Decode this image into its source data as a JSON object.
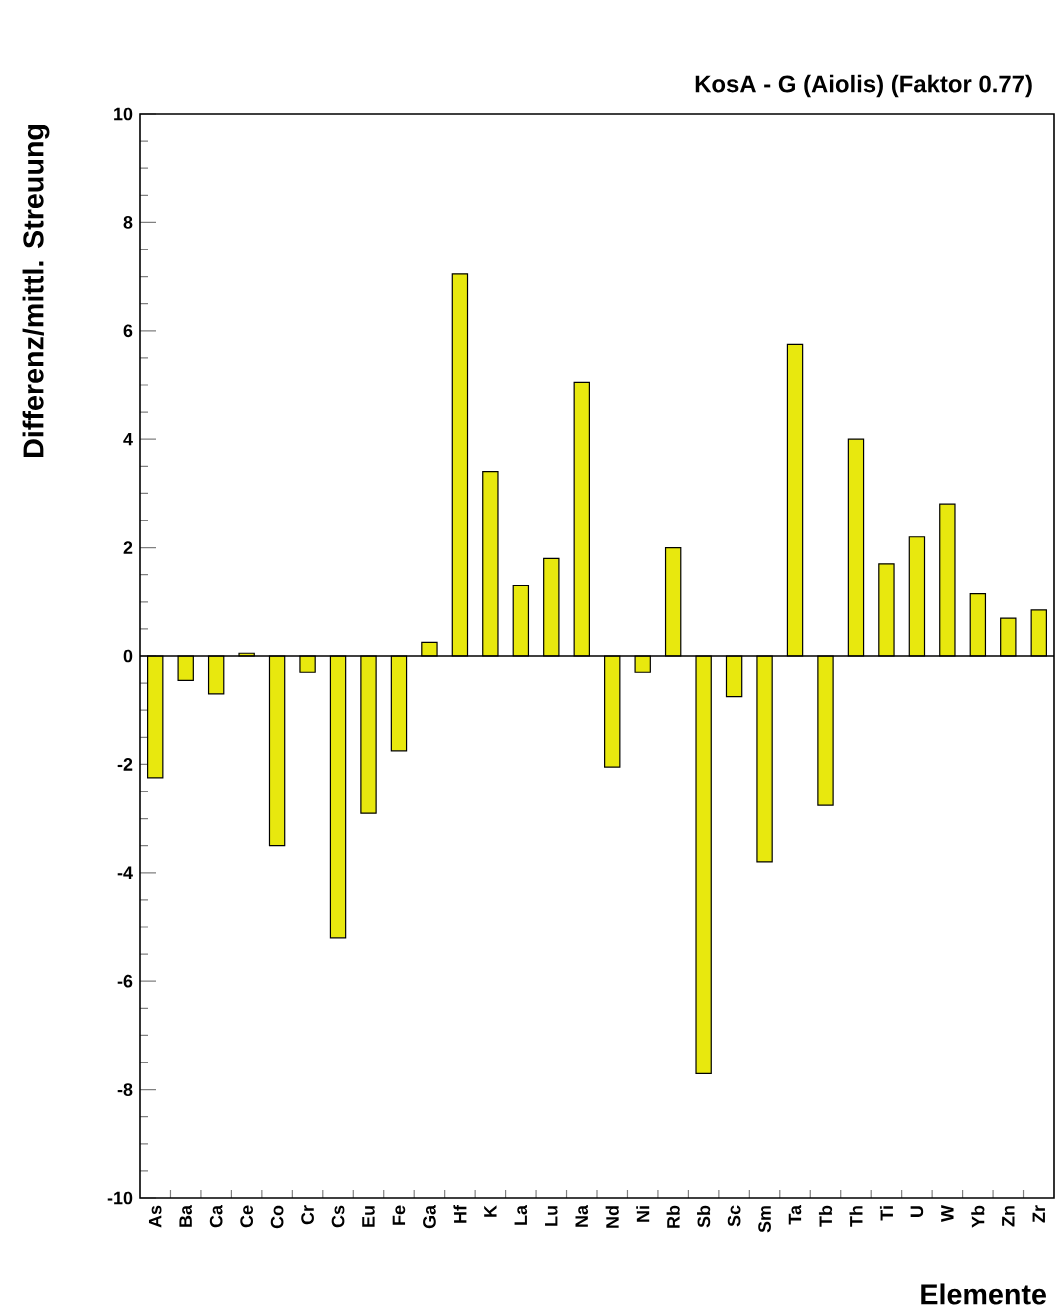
{
  "chart_data": {
    "type": "bar",
    "title": "KosA  - G (Aiolis) (Faktor 0.77)",
    "xlabel": "Elemente",
    "ylabel": "Differenz/mittl. Streuung",
    "categories": [
      "As",
      "Ba",
      "Ca",
      "Ce",
      "Co",
      "Cr",
      "Cs",
      "Eu",
      "Fe",
      "Ga",
      "Hf",
      "K",
      "La",
      "Lu",
      "Na",
      "Nd",
      "Ni",
      "Rb",
      "Sb",
      "Sc",
      "Sm",
      "Ta",
      "Tb",
      "Th",
      "Ti",
      "U",
      "W",
      "Yb",
      "Zn",
      "Zr"
    ],
    "values": [
      -2.25,
      -0.45,
      -0.7,
      0.05,
      -3.5,
      -0.3,
      -5.2,
      -2.9,
      -1.75,
      0.25,
      7.05,
      3.4,
      1.3,
      1.8,
      5.05,
      -2.05,
      -0.3,
      2.0,
      -7.7,
      -0.75,
      -3.8,
      5.75,
      -2.75,
      4.0,
      1.7,
      2.2,
      2.8,
      1.15,
      0.7,
      0.85
    ],
    "color": "#e8e80e",
    "ylim": [
      -10,
      10
    ],
    "yticks": [
      -10,
      -8,
      -6,
      -4,
      -2,
      0,
      2,
      4,
      6,
      8,
      10
    ],
    "ref_lines": [
      {
        "axis": "y",
        "value": 0
      }
    ]
  }
}
